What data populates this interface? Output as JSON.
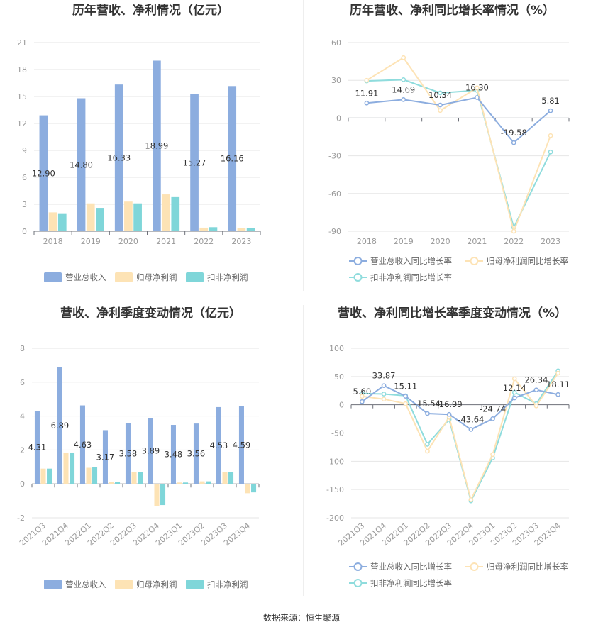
{
  "colors": {
    "revenue": "#8caddf",
    "net_profit": "#fde3b5",
    "deducted_profit": "#7fd6d9",
    "revenue_line": "#8caddf",
    "net_line": "#fde3b5",
    "deducted_line": "#8fdcdd"
  },
  "source": "数据来源：恒生聚源",
  "chart_data": [
    {
      "id": "annual-amounts",
      "type": "bar",
      "title": "历年营收、净利情况（亿元）",
      "categories": [
        "2018",
        "2019",
        "2020",
        "2021",
        "2022",
        "2023"
      ],
      "ylim": [
        0,
        21
      ],
      "yticks": [
        0,
        3,
        6,
        9,
        12,
        15,
        18,
        21
      ],
      "grid": true,
      "legend": "bottom",
      "series": [
        {
          "name": "营业总收入",
          "values": [
            12.9,
            14.8,
            16.33,
            18.99,
            15.27,
            16.16
          ],
          "labels": [
            "12.90",
            "14.80",
            "16.33",
            "18.99",
            "15.27",
            "16.16"
          ]
        },
        {
          "name": "归母净利润",
          "values": [
            2.1,
            3.1,
            3.3,
            4.1,
            0.4,
            0.35
          ]
        },
        {
          "name": "扣非净利润",
          "values": [
            2.0,
            2.6,
            3.1,
            3.8,
            0.45,
            0.35
          ]
        }
      ]
    },
    {
      "id": "annual-growth",
      "type": "line",
      "title": "历年营收、净利同比增长率情况（%）",
      "categories": [
        "2018",
        "2019",
        "2020",
        "2021",
        "2022",
        "2023"
      ],
      "ylim": [
        -90,
        60
      ],
      "yticks": [
        -90,
        -60,
        -30,
        0,
        30,
        60
      ],
      "grid": true,
      "legend": "bottom",
      "series": [
        {
          "name": "营业总收入同比增长率",
          "values": [
            11.91,
            14.69,
            10.34,
            16.3,
            -19.58,
            5.81
          ],
          "labels": [
            "11.91",
            "14.69",
            "10.34",
            "16.30",
            "-19.58",
            "5.81"
          ]
        },
        {
          "name": "归母净利润同比增长率",
          "values": [
            30,
            48,
            6,
            24,
            -90,
            -14
          ]
        },
        {
          "name": "扣非净利润同比增长率",
          "values": [
            29.5,
            30.5,
            20,
            22,
            -87,
            -27
          ]
        }
      ]
    },
    {
      "id": "quarterly-amounts",
      "type": "bar",
      "title": "营收、净利季度变动情况（亿元）",
      "categories": [
        "2021Q3",
        "2021Q4",
        "2022Q1",
        "2022Q2",
        "2022Q3",
        "2022Q4",
        "2023Q1",
        "2023Q2",
        "2023Q3",
        "2023Q4"
      ],
      "ylim": [
        -2,
        8
      ],
      "yticks": [
        -2,
        0,
        2,
        4,
        6,
        8
      ],
      "grid": true,
      "legend": "bottom",
      "series": [
        {
          "name": "营业总收入",
          "values": [
            4.31,
            6.89,
            4.63,
            3.17,
            3.58,
            3.89,
            3.48,
            3.56,
            4.53,
            4.59
          ],
          "labels": [
            "4.31",
            "6.89",
            "4.63",
            "3.17",
            "3.58",
            "3.89",
            "3.48",
            "3.56",
            "4.53",
            "4.59"
          ]
        },
        {
          "name": "归母净利润",
          "values": [
            0.9,
            1.85,
            0.95,
            0.1,
            0.7,
            -1.3,
            0.08,
            0.15,
            0.7,
            -0.55
          ]
        },
        {
          "name": "扣非净利润",
          "values": [
            0.9,
            1.85,
            1.0,
            0.1,
            0.68,
            -1.25,
            0.08,
            0.15,
            0.7,
            -0.5
          ]
        }
      ]
    },
    {
      "id": "quarterly-growth",
      "type": "line",
      "title": "营收、净利同比增长率季度变动情况（%）",
      "categories": [
        "2021Q3",
        "2021Q4",
        "2022Q1",
        "2022Q2",
        "2022Q3",
        "2022Q4",
        "2023Q1",
        "2023Q2",
        "2023Q3",
        "2023Q4"
      ],
      "ylim": [
        -200,
        100
      ],
      "yticks": [
        -200,
        -150,
        -100,
        -50,
        0,
        50,
        100
      ],
      "grid": true,
      "legend": "bottom",
      "series": [
        {
          "name": "营业总收入同比增长率",
          "values": [
            5.6,
            33.87,
            15.11,
            -15.54,
            -16.99,
            -43.64,
            -24.74,
            12.14,
            26.34,
            18.11
          ],
          "labels": [
            "5.60",
            "33.87",
            "15.11",
            "-15.54",
            "-16.99",
            "-43.64",
            "-24.74",
            "12.14",
            "26.34",
            "18.11"
          ]
        },
        {
          "name": "归母净利润同比增长率",
          "values": [
            15,
            10,
            2,
            -82,
            -22,
            -168,
            -88,
            46,
            -2,
            56
          ]
        },
        {
          "name": "扣非净利润同比增长率",
          "values": [
            20,
            19,
            16,
            -70,
            -26,
            -170,
            -94,
            22,
            2,
            60
          ]
        }
      ]
    }
  ]
}
